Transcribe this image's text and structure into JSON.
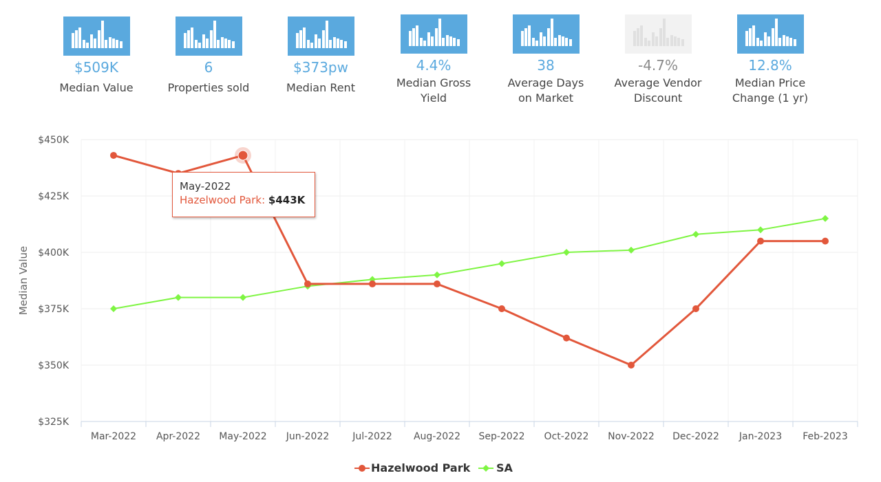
{
  "stats": [
    {
      "value": "$509K",
      "label": "Median Value",
      "icon": "bar-chart-icon",
      "dim": false
    },
    {
      "value": "6",
      "label": "Properties sold",
      "icon": "bar-chart-icon",
      "dim": false
    },
    {
      "value": "$373pw",
      "label": "Median Rent",
      "icon": "bar-chart-icon",
      "dim": false
    },
    {
      "value": "4.4%",
      "label": "Median Gross Yield",
      "icon": "bar-chart-icon",
      "dim": false
    },
    {
      "value": "38",
      "label": "Average Days on Market",
      "icon": "bar-chart-icon",
      "dim": false
    },
    {
      "value": "-4.7%",
      "label": "Average Vendor Discount",
      "icon": "bar-chart-icon",
      "dim": true
    },
    {
      "value": "12.8%",
      "label": "Median Price Change (1 yr)",
      "icon": "bar-chart-icon",
      "dim": false
    }
  ],
  "chart_data": {
    "type": "line",
    "ylabel": "Median Value",
    "xlabel": "",
    "categories": [
      "Mar-2022",
      "Apr-2022",
      "May-2022",
      "Jun-2022",
      "Jul-2022",
      "Aug-2022",
      "Sep-2022",
      "Oct-2022",
      "Nov-2022",
      "Dec-2022",
      "Jan-2023",
      "Feb-2023"
    ],
    "ylim": [
      325000,
      450000
    ],
    "yticks": [
      325000,
      350000,
      375000,
      400000,
      425000,
      450000
    ],
    "ytick_labels": [
      "$325K",
      "$350K",
      "$375K",
      "$400K",
      "$425K",
      "$450K"
    ],
    "grid": true,
    "legend_position": "bottom-center",
    "series": [
      {
        "name": "Hazelwood Park",
        "color": "#e2573b",
        "marker": "circle",
        "values": [
          443000,
          435000,
          443000,
          386000,
          386000,
          386000,
          375000,
          362000,
          350000,
          375000,
          405000,
          405000
        ]
      },
      {
        "name": "SA",
        "color": "#7ef542",
        "marker": "diamond",
        "values": [
          375000,
          380000,
          380000,
          385000,
          388000,
          390000,
          395000,
          400000,
          401000,
          408000,
          410000,
          415000
        ]
      }
    ],
    "tooltip": {
      "category": "May-2022",
      "series": "Hazelwood Park",
      "label": "Hazelwood Park:",
      "value_text": "$443K"
    }
  }
}
